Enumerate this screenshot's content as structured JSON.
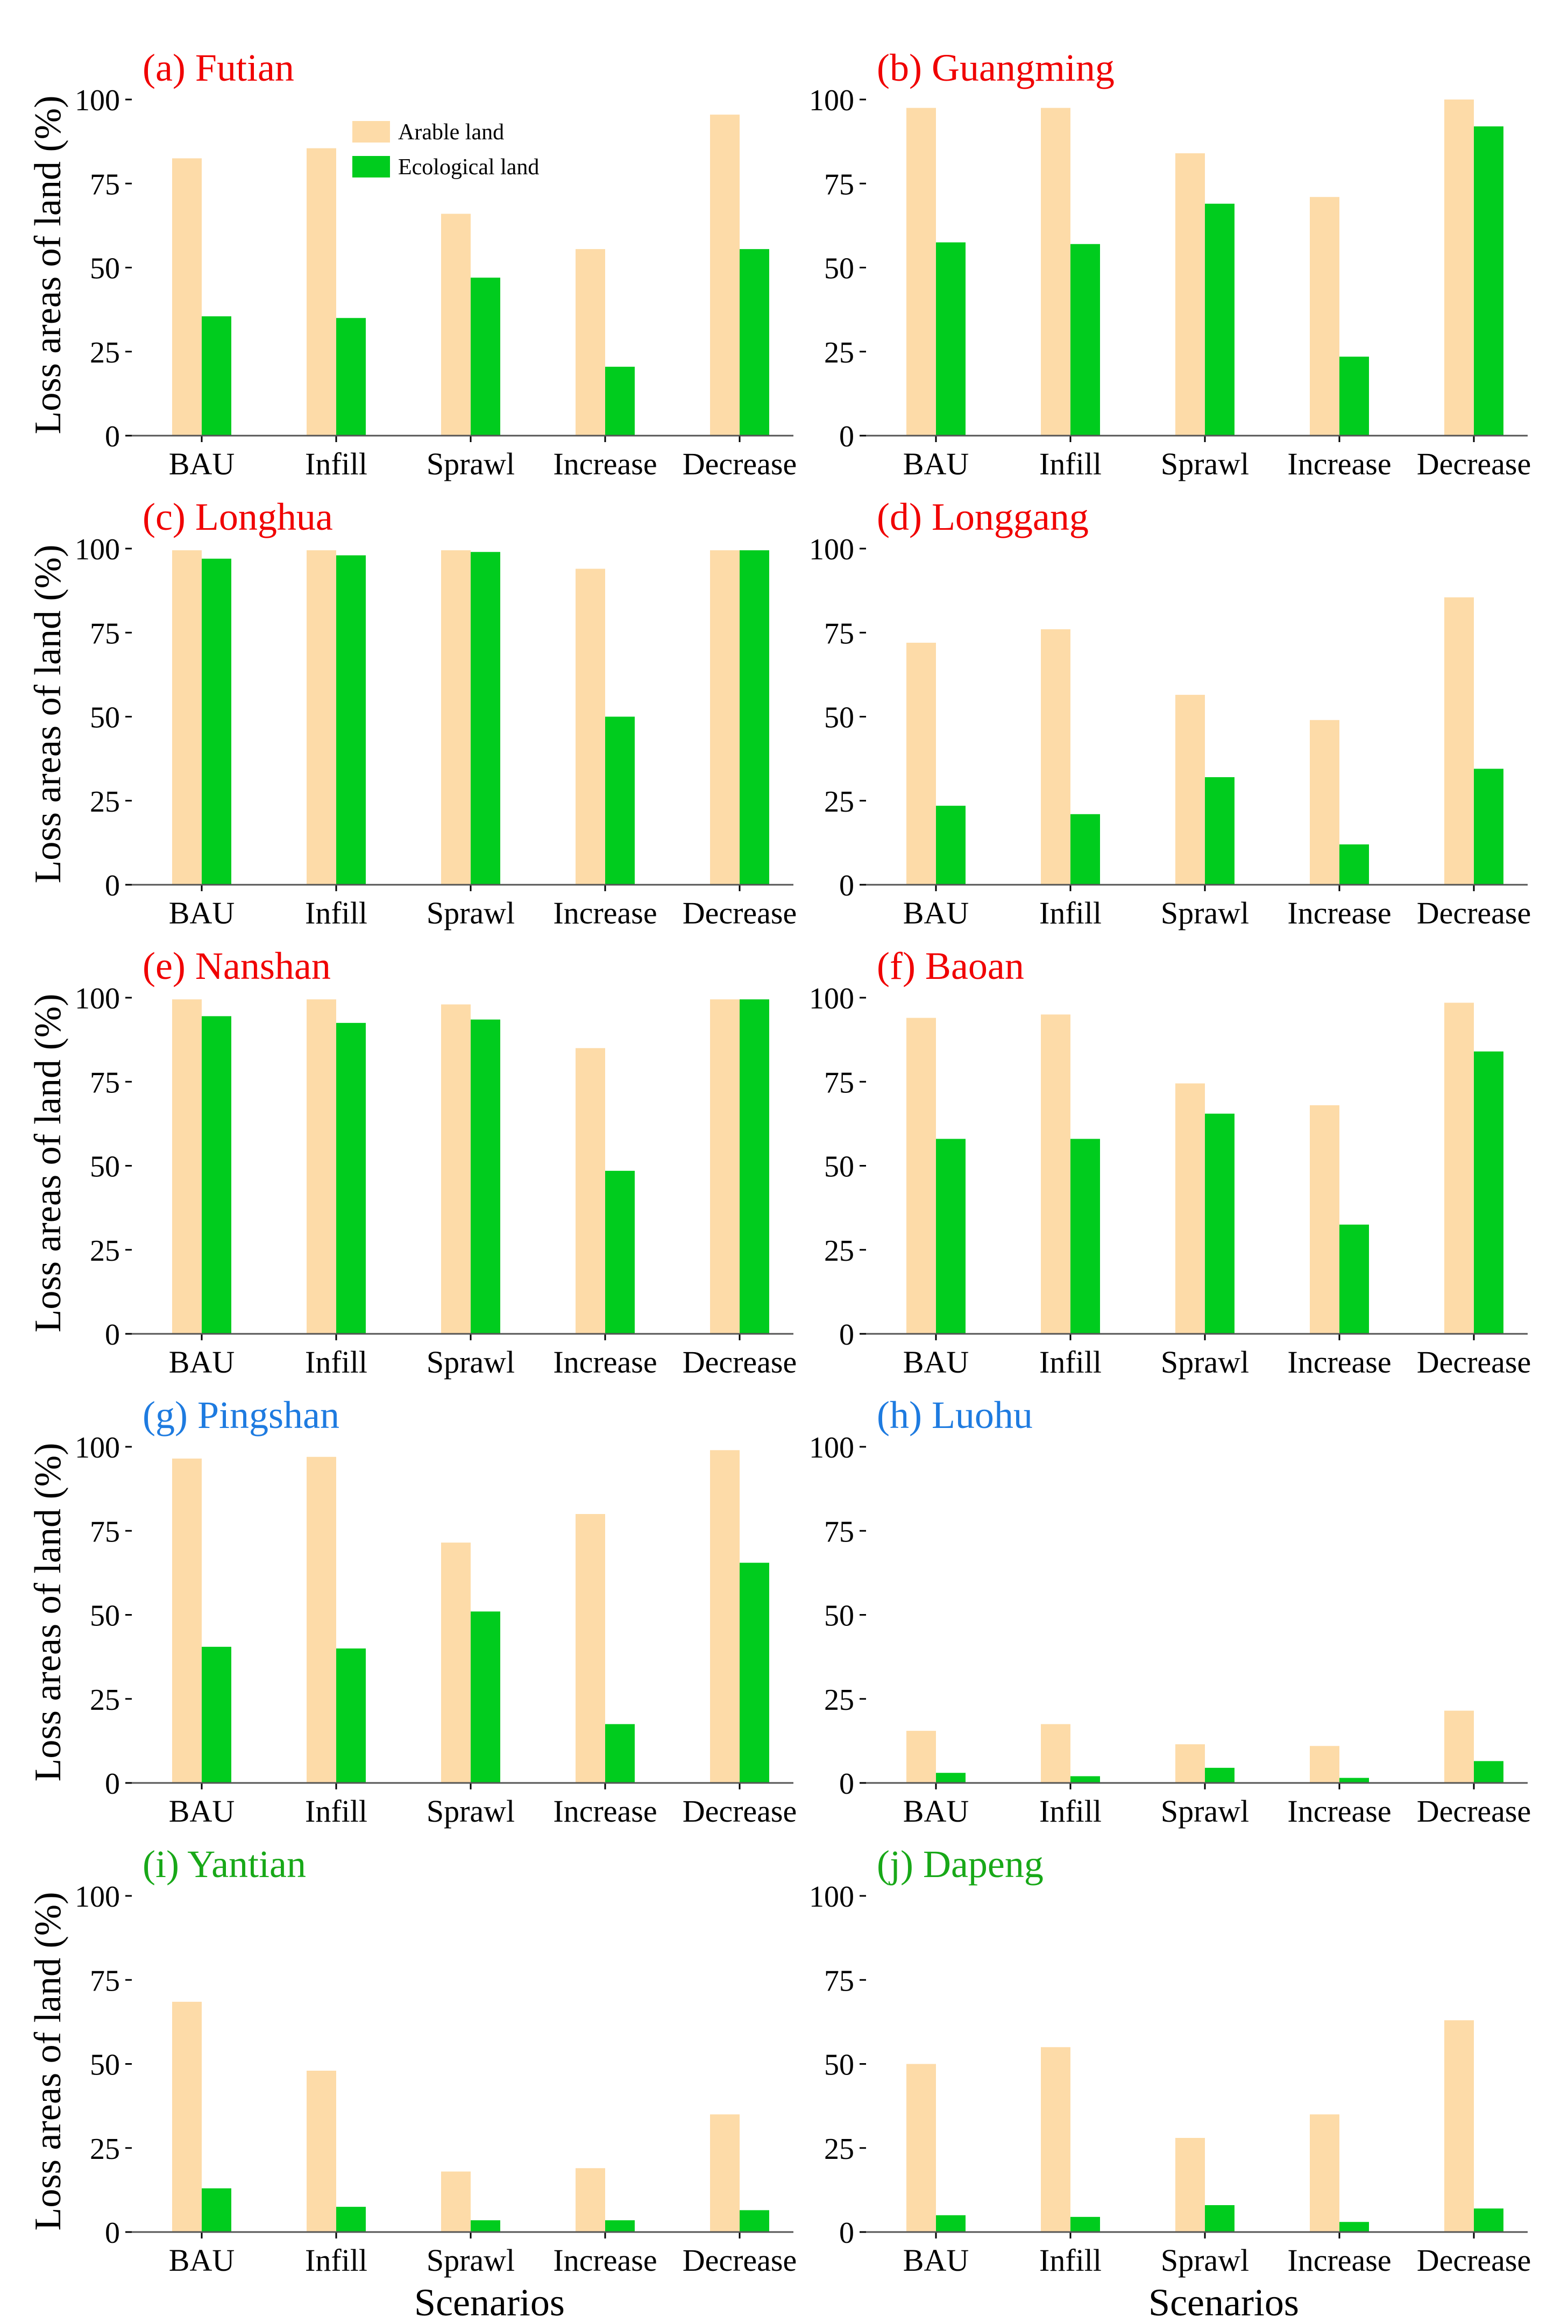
{
  "figure": {
    "ylabel": "Loss areas of land (%)",
    "xlabel": "Scenarios"
  },
  "legend": {
    "items": [
      {
        "label": "Arable land",
        "color": "#FDDBA8"
      },
      {
        "label": "Ecological land",
        "color": "#00CC1E"
      }
    ]
  },
  "colors": {
    "arable": "#FDDBA8",
    "ecological": "#00CC1E",
    "title_red": "#F00000",
    "title_blue": "#1E7BE0",
    "title_green": "#18A818",
    "axis": "#000000"
  },
  "chart_data": [
    {
      "type": "bar",
      "title": "(a) Futian",
      "title_color": "red",
      "categories": [
        "BAU",
        "Infill",
        "Sprawl",
        "Increase",
        "Decrease"
      ],
      "series": [
        {
          "name": "Arable land",
          "values": [
            82.5,
            85.5,
            66,
            55.5,
            95.5
          ]
        },
        {
          "name": "Ecological land",
          "values": [
            35.5,
            35,
            47,
            20.5,
            55.5
          ]
        }
      ],
      "ylim": [
        0,
        100
      ],
      "yticks": [
        0,
        25,
        50,
        75,
        100
      ],
      "ylabel": "Loss areas of land (%)",
      "xlabel": ""
    },
    {
      "type": "bar",
      "title": "(b) Guangming",
      "title_color": "red",
      "categories": [
        "BAU",
        "Infill",
        "Sprawl",
        "Increase",
        "Decrease"
      ],
      "series": [
        {
          "name": "Arable land",
          "values": [
            97.5,
            97.5,
            84,
            71,
            100
          ]
        },
        {
          "name": "Ecological land",
          "values": [
            57.5,
            57,
            69,
            23.5,
            92
          ]
        }
      ],
      "ylim": [
        0,
        100
      ],
      "yticks": [
        0,
        25,
        50,
        75,
        100
      ],
      "ylabel": "",
      "xlabel": ""
    },
    {
      "type": "bar",
      "title": "(c) Longhua",
      "title_color": "red",
      "categories": [
        "BAU",
        "Infill",
        "Sprawl",
        "Increase",
        "Decrease"
      ],
      "series": [
        {
          "name": "Arable land",
          "values": [
            99.5,
            99.5,
            99.5,
            94,
            99.5
          ]
        },
        {
          "name": "Ecological land",
          "values": [
            97,
            98,
            99,
            50,
            99.5
          ]
        }
      ],
      "ylim": [
        0,
        100
      ],
      "yticks": [
        0,
        25,
        50,
        75,
        100
      ],
      "ylabel": "Loss areas of land (%)",
      "xlabel": ""
    },
    {
      "type": "bar",
      "title": "(d) Longgang",
      "title_color": "red",
      "categories": [
        "BAU",
        "Infill",
        "Sprawl",
        "Increase",
        "Decrease"
      ],
      "series": [
        {
          "name": "Arable land",
          "values": [
            72,
            76,
            56.5,
            49,
            85.5
          ]
        },
        {
          "name": "Ecological land",
          "values": [
            23.5,
            21,
            32,
            12,
            34.5
          ]
        }
      ],
      "ylim": [
        0,
        100
      ],
      "yticks": [
        0,
        25,
        50,
        75,
        100
      ],
      "ylabel": "",
      "xlabel": ""
    },
    {
      "type": "bar",
      "title": "(e) Nanshan",
      "title_color": "red",
      "categories": [
        "BAU",
        "Infill",
        "Sprawl",
        "Increase",
        "Decrease"
      ],
      "series": [
        {
          "name": "Arable land",
          "values": [
            99.5,
            99.5,
            98,
            85,
            99.5
          ]
        },
        {
          "name": "Ecological land",
          "values": [
            94.5,
            92.5,
            93.5,
            48.5,
            99.5
          ]
        }
      ],
      "ylim": [
        0,
        100
      ],
      "yticks": [
        0,
        25,
        50,
        75,
        100
      ],
      "ylabel": "Loss areas of land (%)",
      "xlabel": ""
    },
    {
      "type": "bar",
      "title": "(f) Baoan",
      "title_color": "red",
      "categories": [
        "BAU",
        "Infill",
        "Sprawl",
        "Increase",
        "Decrease"
      ],
      "series": [
        {
          "name": "Arable land",
          "values": [
            94,
            95,
            74.5,
            68,
            98.5
          ]
        },
        {
          "name": "Ecological land",
          "values": [
            58,
            58,
            65.5,
            32.5,
            84
          ]
        }
      ],
      "ylim": [
        0,
        100
      ],
      "yticks": [
        0,
        25,
        50,
        75,
        100
      ],
      "ylabel": "",
      "xlabel": ""
    },
    {
      "type": "bar",
      "title": "(g) Pingshan",
      "title_color": "blue",
      "categories": [
        "BAU",
        "Infill",
        "Sprawl",
        "Increase",
        "Decrease"
      ],
      "series": [
        {
          "name": "Arable land",
          "values": [
            96.5,
            97,
            71.5,
            80,
            99
          ]
        },
        {
          "name": "Ecological land",
          "values": [
            40.5,
            40,
            51,
            17.5,
            65.5
          ]
        }
      ],
      "ylim": [
        0,
        100
      ],
      "yticks": [
        0,
        25,
        50,
        75,
        100
      ],
      "ylabel": "Loss areas of land (%)",
      "xlabel": ""
    },
    {
      "type": "bar",
      "title": "(h) Luohu",
      "title_color": "blue",
      "categories": [
        "BAU",
        "Infill",
        "Sprawl",
        "Increase",
        "Decrease"
      ],
      "series": [
        {
          "name": "Arable land",
          "values": [
            15.5,
            17.5,
            11.5,
            11,
            21.5
          ]
        },
        {
          "name": "Ecological land",
          "values": [
            3,
            2,
            4.5,
            1.5,
            6.5
          ]
        }
      ],
      "ylim": [
        0,
        100
      ],
      "yticks": [
        0,
        25,
        50,
        75,
        100
      ],
      "ylabel": "",
      "xlabel": ""
    },
    {
      "type": "bar",
      "title": "(i) Yantian",
      "title_color": "green",
      "categories": [
        "BAU",
        "Infill",
        "Sprawl",
        "Increase",
        "Decrease"
      ],
      "series": [
        {
          "name": "Arable land",
          "values": [
            68.5,
            48,
            18,
            19,
            35
          ]
        },
        {
          "name": "Ecological land",
          "values": [
            13,
            7.5,
            3.5,
            3.5,
            6.5
          ]
        }
      ],
      "ylim": [
        0,
        100
      ],
      "yticks": [
        0,
        25,
        50,
        75,
        100
      ],
      "ylabel": "Loss areas of land (%)",
      "xlabel": "Scenarios"
    },
    {
      "type": "bar",
      "title": "(j) Dapeng",
      "title_color": "green",
      "categories": [
        "BAU",
        "Infill",
        "Sprawl",
        "Increase",
        "Decrease"
      ],
      "series": [
        {
          "name": "Arable land",
          "values": [
            50,
            55,
            28,
            35,
            63
          ]
        },
        {
          "name": "Ecological land",
          "values": [
            5,
            4.5,
            8,
            3,
            7
          ]
        }
      ],
      "ylim": [
        0,
        100
      ],
      "yticks": [
        0,
        25,
        50,
        75,
        100
      ],
      "ylabel": "",
      "xlabel": "Scenarios"
    }
  ]
}
